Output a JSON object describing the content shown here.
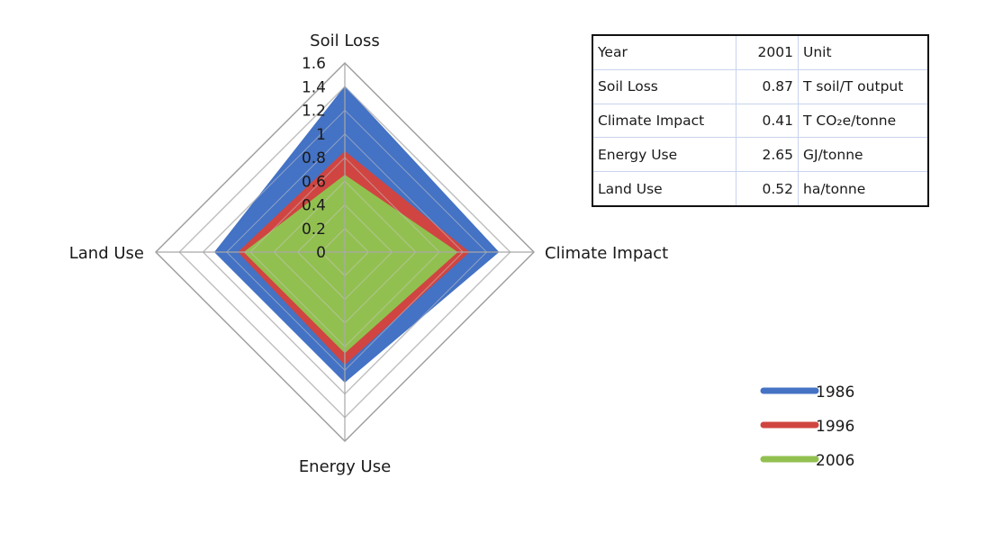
{
  "chart_data": {
    "type": "radar",
    "axes": [
      "Soil Loss",
      "Climate Impact",
      "Energy Use",
      "Land Use"
    ],
    "scale": {
      "min": 0,
      "max": 1.6,
      "step": 0.2
    },
    "tick_labels": [
      "0",
      "0.2",
      "0.4",
      "0.6",
      "0.8",
      "1",
      "1.2",
      "1.4",
      "1.6"
    ],
    "series": [
      {
        "name": "1986",
        "color": "#4472c4",
        "values": [
          1.4,
          1.3,
          1.1,
          1.1
        ]
      },
      {
        "name": "1996",
        "color": "#d04541",
        "values": [
          0.85,
          1.05,
          0.95,
          0.9
        ]
      },
      {
        "name": "2006",
        "color": "#92c050",
        "values": [
          0.65,
          0.95,
          0.85,
          0.85
        ]
      }
    ],
    "legend_position": "bottom-right",
    "grid": true
  },
  "table": {
    "rows": [
      {
        "label": "Year",
        "value": "2001",
        "unit": "Unit"
      },
      {
        "label": "Soil Loss",
        "value": "0.87",
        "unit": "T soil/T output"
      },
      {
        "label": "Climate Impact",
        "value": "0.41",
        "unit": "T CO₂e/tonne"
      },
      {
        "label": "Energy Use",
        "value": "2.65",
        "unit": "GJ/tonne"
      },
      {
        "label": "Land Use",
        "value": "0.52",
        "unit": "ha/tonne"
      }
    ]
  }
}
